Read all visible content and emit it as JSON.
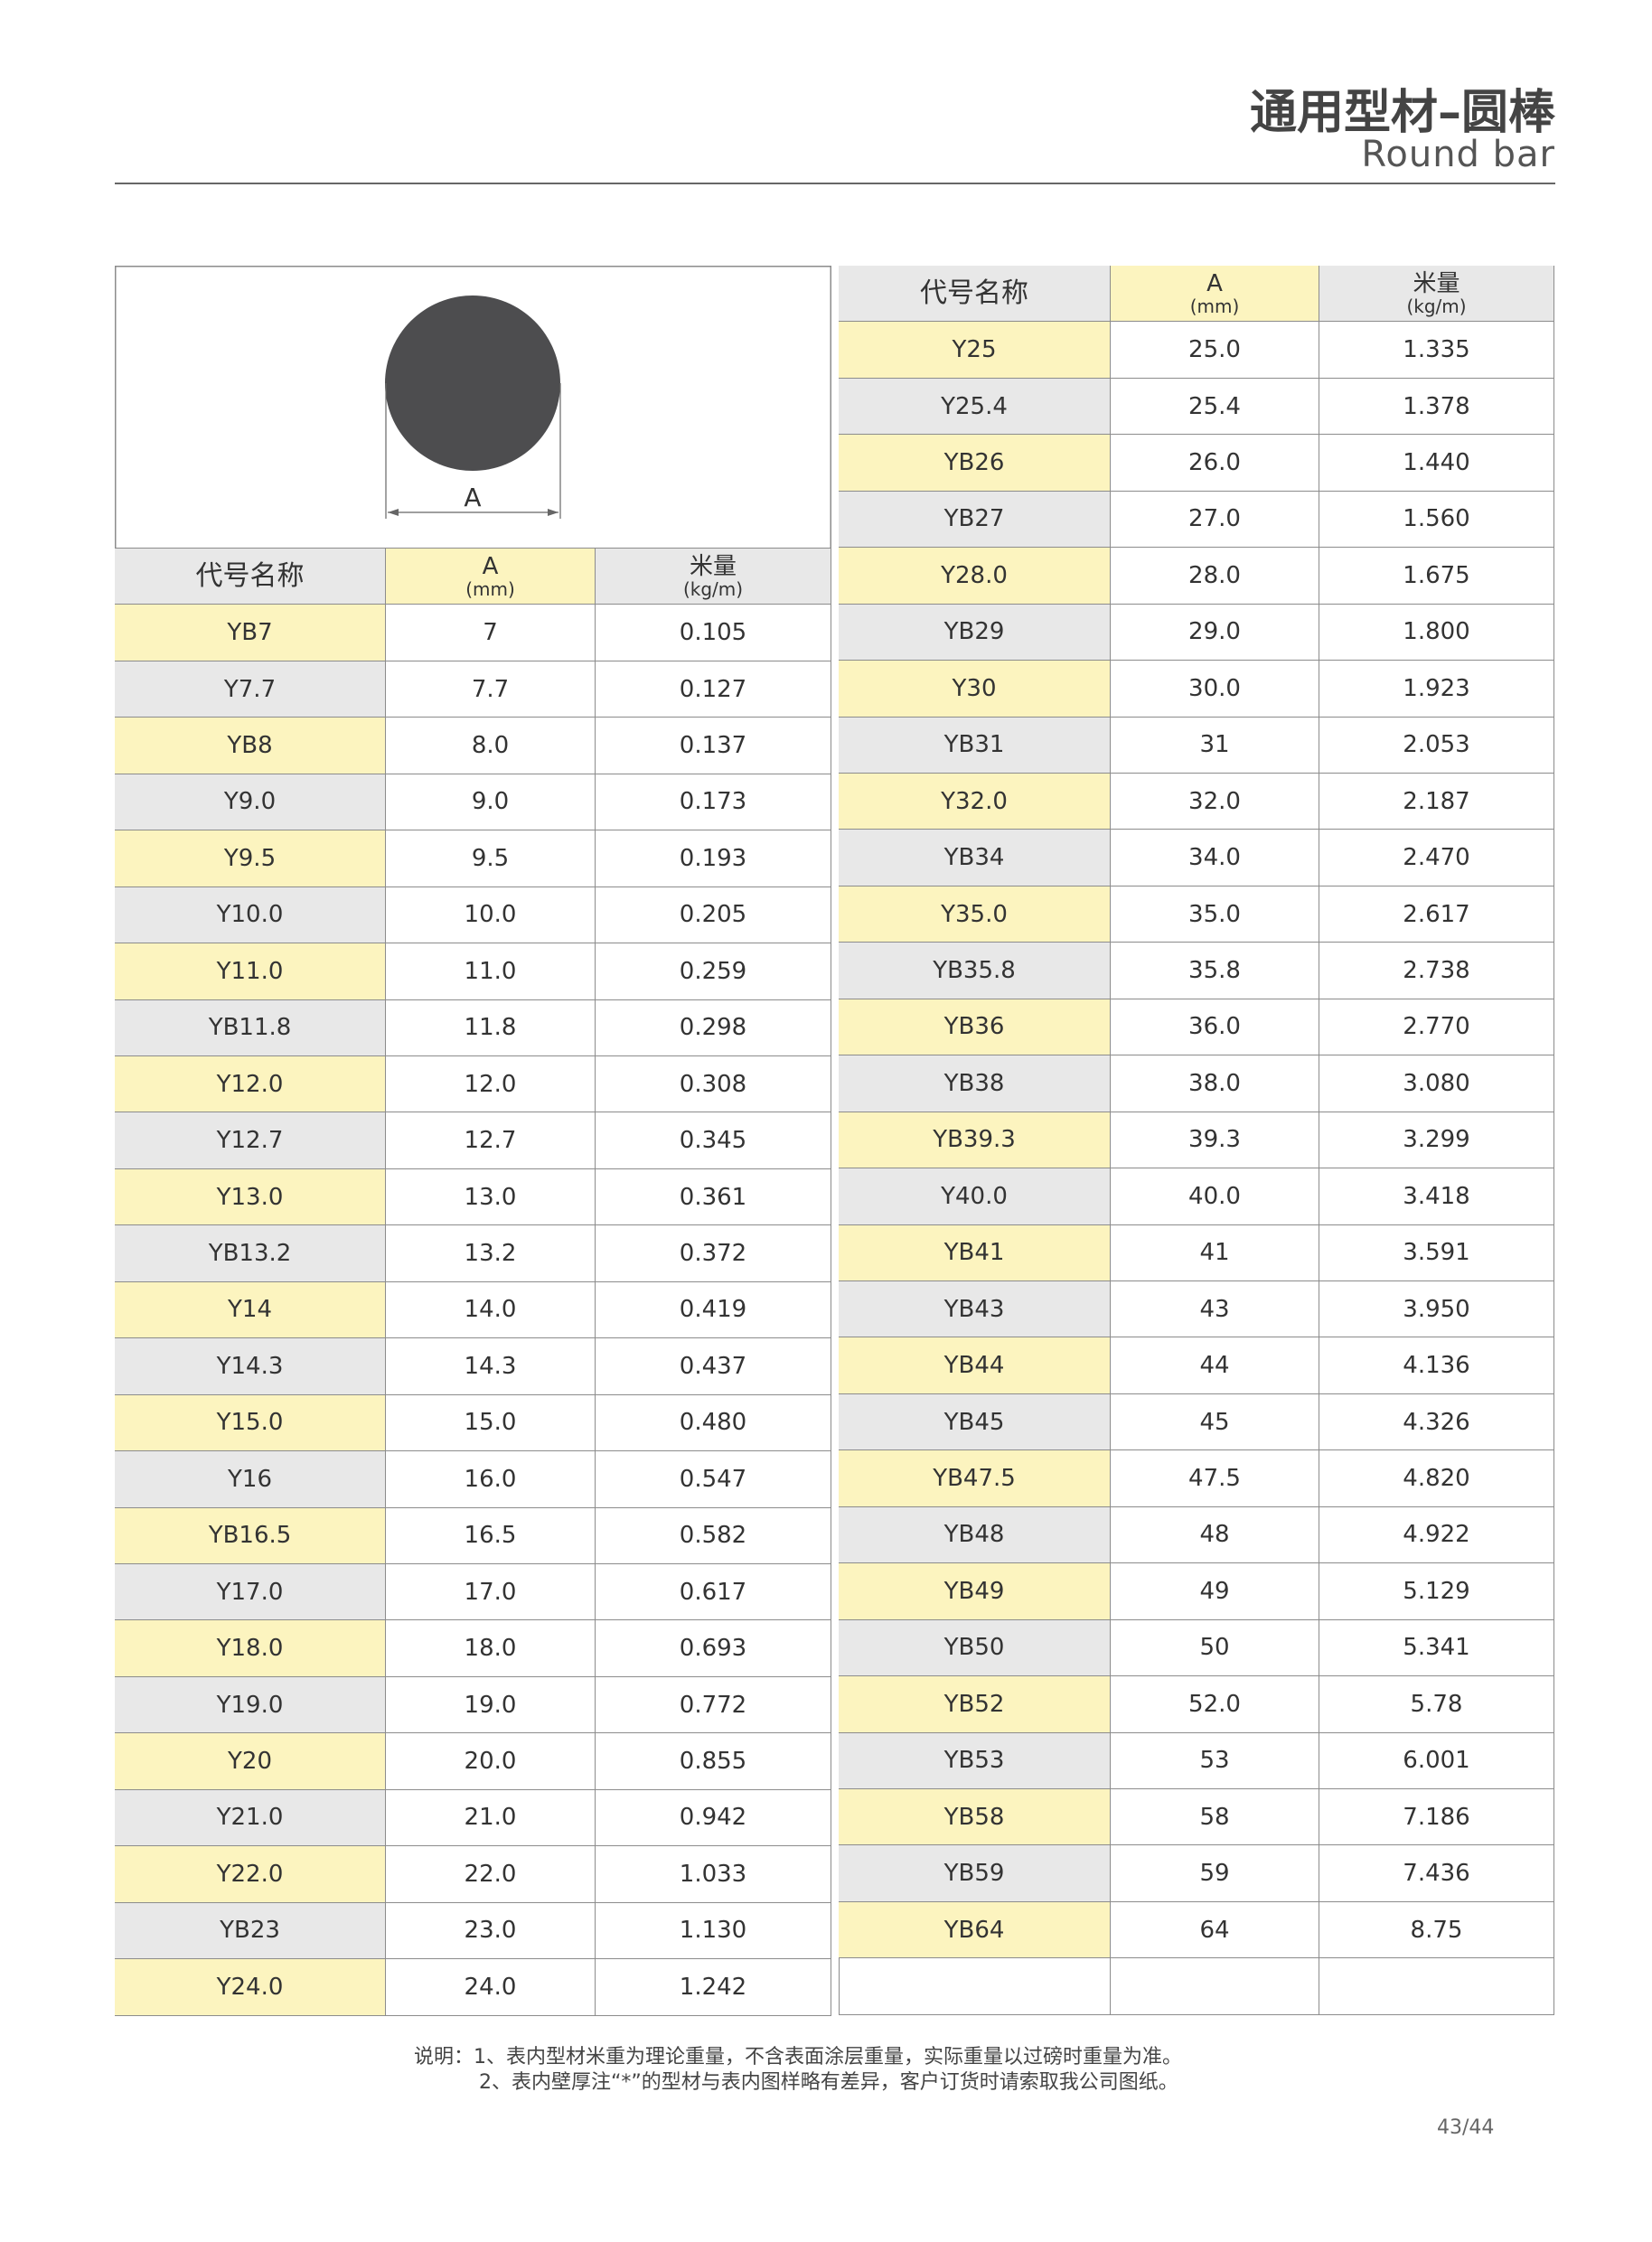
{
  "header": {
    "title": "通用型材–圆棒",
    "subtitle": "Round bar"
  },
  "figure": {
    "label": "A"
  },
  "columns": [
    {
      "name": "代号名称"
    },
    {
      "name": "A",
      "unit": "(mm)"
    },
    {
      "name": "米量",
      "unit": "(kg/m)"
    }
  ],
  "left_table": {
    "rows": [
      [
        "YB7",
        "7",
        "0.105"
      ],
      [
        "Y7.7",
        "7.7",
        "0.127"
      ],
      [
        "YB8",
        "8.0",
        "0.137"
      ],
      [
        "Y9.0",
        "9.0",
        "0.173"
      ],
      [
        "Y9.5",
        "9.5",
        "0.193"
      ],
      [
        "Y10.0",
        "10.0",
        "0.205"
      ],
      [
        "Y11.0",
        "11.0",
        "0.259"
      ],
      [
        "YB11.8",
        "11.8",
        "0.298"
      ],
      [
        "Y12.0",
        "12.0",
        "0.308"
      ],
      [
        "Y12.7",
        "12.7",
        "0.345"
      ],
      [
        "Y13.0",
        "13.0",
        "0.361"
      ],
      [
        "YB13.2",
        "13.2",
        "0.372"
      ],
      [
        "Y14",
        "14.0",
        "0.419"
      ],
      [
        "Y14.3",
        "14.3",
        "0.437"
      ],
      [
        "Y15.0",
        "15.0",
        "0.480"
      ],
      [
        "Y16",
        "16.0",
        "0.547"
      ],
      [
        "YB16.5",
        "16.5",
        "0.582"
      ],
      [
        "Y17.0",
        "17.0",
        "0.617"
      ],
      [
        "Y18.0",
        "18.0",
        "0.693"
      ],
      [
        "Y19.0",
        "19.0",
        "0.772"
      ],
      [
        "Y20",
        "20.0",
        "0.855"
      ],
      [
        "Y21.0",
        "21.0",
        "0.942"
      ],
      [
        "Y22.0",
        "22.0",
        "1.033"
      ],
      [
        "YB23",
        "23.0",
        "1.130"
      ],
      [
        "Y24.0",
        "24.0",
        "1.242"
      ]
    ]
  },
  "right_table": {
    "rows": [
      [
        "Y25",
        "25.0",
        "1.335"
      ],
      [
        "Y25.4",
        "25.4",
        "1.378"
      ],
      [
        "YB26",
        "26.0",
        "1.440"
      ],
      [
        "YB27",
        "27.0",
        "1.560"
      ],
      [
        "Y28.0",
        "28.0",
        "1.675"
      ],
      [
        "YB29",
        "29.0",
        "1.800"
      ],
      [
        "Y30",
        "30.0",
        "1.923"
      ],
      [
        "YB31",
        "31",
        "2.053"
      ],
      [
        "Y32.0",
        "32.0",
        "2.187"
      ],
      [
        "YB34",
        "34.0",
        "2.470"
      ],
      [
        "Y35.0",
        "35.0",
        "2.617"
      ],
      [
        "YB35.8",
        "35.8",
        "2.738"
      ],
      [
        "YB36",
        "36.0",
        "2.770"
      ],
      [
        "YB38",
        "38.0",
        "3.080"
      ],
      [
        "YB39.3",
        "39.3",
        "3.299"
      ],
      [
        "Y40.0",
        "40.0",
        "3.418"
      ],
      [
        "YB41",
        "41",
        "3.591"
      ],
      [
        "YB43",
        "43",
        "3.950"
      ],
      [
        "YB44",
        "44",
        "4.136"
      ],
      [
        "YB45",
        "45",
        "4.326"
      ],
      [
        "YB47.5",
        "47.5",
        "4.820"
      ],
      [
        "YB48",
        "48",
        "4.922"
      ],
      [
        "YB49",
        "49",
        "5.129"
      ],
      [
        "YB50",
        "50",
        "5.341"
      ],
      [
        "YB52",
        "52.0",
        "5.78"
      ],
      [
        "YB53",
        "53",
        "6.001"
      ],
      [
        "YB58",
        "58",
        "7.186"
      ],
      [
        "YB59",
        "59",
        "7.436"
      ],
      [
        "YB64",
        "64",
        "8.75"
      ]
    ]
  },
  "notes": [
    "说明：1、表内型材米重为理论重量，不含表面涂层重量，实际重量以过磅时重量为准。",
    "2、表内壁厚注“*”的型材与表内图样略有差异，客户订货时请索取我公司图纸。"
  ],
  "footer": {
    "page": "43/44"
  }
}
